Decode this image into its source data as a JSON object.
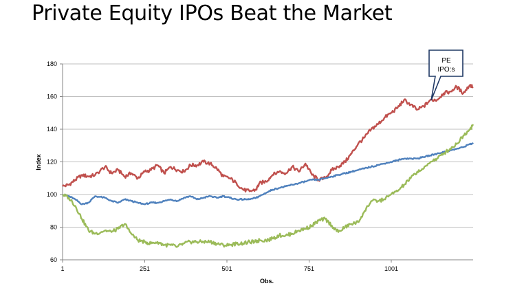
{
  "slide": {
    "title": "Private Equity IPOs Beat the Market"
  },
  "chart_data": {
    "type": "line",
    "xlabel": "Obs.",
    "ylabel": "Index",
    "xlim": [
      1,
      1250
    ],
    "ylim": [
      60,
      180
    ],
    "xticks": [
      "1",
      "251",
      "501",
      "751",
      "1001"
    ],
    "yticks": [
      "60",
      "80",
      "100",
      "120",
      "140",
      "160",
      "180"
    ],
    "grid": "horizontal",
    "legend": "none",
    "annotation": {
      "text_lines": [
        "PE",
        "IPO:s"
      ],
      "points_to_x": 1125,
      "points_to_y": 158
    },
    "colors": {
      "red": "#c0504d",
      "blue": "#4f81bd",
      "green": "#9bbb59",
      "grid": "#bfbfbf",
      "axis": "#868686",
      "callout_border": "#1f3864"
    },
    "series": [
      {
        "color": "#c0504d",
        "x": [
          1,
          20,
          40,
          60,
          80,
          100,
          130,
          150,
          170,
          190,
          210,
          230,
          251,
          270,
          290,
          310,
          330,
          350,
          370,
          390,
          410,
          430,
          450,
          470,
          490,
          510,
          530,
          550,
          570,
          590,
          600,
          620,
          640,
          660,
          680,
          700,
          720,
          740,
          760,
          780,
          800,
          820,
          840,
          860,
          880,
          900,
          920,
          940,
          960,
          980,
          1000,
          1020,
          1040,
          1060,
          1080,
          1100,
          1120,
          1140,
          1160,
          1180,
          1200,
          1220,
          1240,
          1250
        ],
        "y": [
          105,
          106,
          109,
          112,
          111,
          112,
          117,
          113,
          115,
          111,
          113,
          110,
          114,
          115,
          118,
          113,
          117,
          115,
          114,
          118,
          118,
          120,
          119,
          116,
          111,
          110,
          107,
          103,
          102,
          103,
          107,
          108,
          112,
          114,
          113,
          117,
          114,
          119,
          112,
          109,
          110,
          115,
          117,
          120,
          125,
          131,
          135,
          140,
          143,
          147,
          150,
          153,
          158,
          155,
          152,
          154,
          158,
          158,
          162,
          163,
          166,
          162,
          167,
          166
        ]
      },
      {
        "color": "#4f81bd",
        "x": [
          1,
          20,
          40,
          60,
          80,
          100,
          130,
          150,
          170,
          190,
          210,
          230,
          251,
          270,
          290,
          310,
          330,
          350,
          370,
          390,
          410,
          430,
          450,
          470,
          490,
          510,
          530,
          550,
          570,
          590,
          600,
          620,
          640,
          660,
          680,
          700,
          720,
          740,
          760,
          780,
          800,
          820,
          840,
          860,
          880,
          900,
          920,
          940,
          960,
          980,
          1000,
          1020,
          1040,
          1060,
          1080,
          1100,
          1120,
          1140,
          1160,
          1180,
          1200,
          1220,
          1240,
          1250
        ],
        "y": [
          100,
          99,
          97,
          94,
          95,
          99,
          98,
          96,
          95,
          97,
          96,
          95,
          94,
          95,
          95,
          96,
          97,
          96,
          98,
          99,
          97,
          98,
          99,
          98,
          99,
          98,
          97,
          97,
          97,
          98,
          99,
          101,
          103,
          104,
          105,
          106,
          107,
          108,
          109,
          109,
          110,
          111,
          112,
          113,
          114,
          115,
          116,
          117,
          118,
          119,
          120,
          121,
          122,
          122,
          122,
          123,
          124,
          125,
          126,
          127,
          128,
          129,
          131,
          131
        ]
      },
      {
        "color": "#9bbb59",
        "x": [
          1,
          20,
          40,
          60,
          80,
          100,
          130,
          150,
          170,
          190,
          210,
          230,
          251,
          270,
          290,
          310,
          330,
          350,
          370,
          390,
          410,
          430,
          450,
          470,
          490,
          510,
          530,
          550,
          570,
          590,
          600,
          620,
          640,
          660,
          680,
          700,
          720,
          740,
          760,
          780,
          800,
          820,
          840,
          860,
          880,
          900,
          920,
          940,
          960,
          980,
          1000,
          1020,
          1040,
          1060,
          1080,
          1100,
          1120,
          1140,
          1160,
          1180,
          1200,
          1220,
          1240,
          1250
        ],
        "y": [
          100,
          98,
          93,
          85,
          78,
          76,
          78,
          77,
          79,
          82,
          76,
          72,
          71,
          70,
          71,
          69,
          69,
          68,
          70,
          71,
          71,
          71,
          71,
          70,
          69,
          69,
          70,
          70,
          71,
          71,
          72,
          72,
          73,
          75,
          75,
          76,
          78,
          79,
          81,
          84,
          85,
          81,
          77,
          80,
          82,
          83,
          90,
          96,
          96,
          97,
          100,
          102,
          106,
          110,
          114,
          116,
          120,
          122,
          125,
          128,
          131,
          136,
          140,
          143
        ]
      }
    ]
  }
}
